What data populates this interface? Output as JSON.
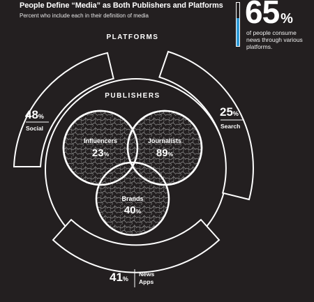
{
  "header": {
    "title": "People Define “Media” as Both Publishers and Platforms",
    "subtitle": "Percent who include each in their definition of media"
  },
  "callout": {
    "value": "65",
    "unit": "%",
    "fraction": 0.65,
    "description": "of people consume news through various platforms.",
    "bar_color": "#2f9bd8"
  },
  "rings": {
    "platforms_label": "PLATFORMS",
    "publishers_label": "PUBLISHERS"
  },
  "platforms": [
    {
      "id": "social",
      "value": "48",
      "unit": "%",
      "name": "Social"
    },
    {
      "id": "search",
      "value": "25",
      "unit": "%",
      "name": "Search"
    },
    {
      "id": "news-apps",
      "value": "41",
      "unit": "%",
      "name_line1": "News",
      "name_line2": "Apps"
    }
  ],
  "publishers": [
    {
      "id": "influencers",
      "name": "Influencers",
      "value": "23",
      "unit": "%"
    },
    {
      "id": "journalists",
      "name": "Journalists",
      "value": "89",
      "unit": "%"
    },
    {
      "id": "brands",
      "name": "Brands",
      "value": "40",
      "unit": "%"
    }
  ],
  "colors": {
    "background": "#231f20",
    "foreground": "#ffffff",
    "accent": "#2f9bd8"
  }
}
